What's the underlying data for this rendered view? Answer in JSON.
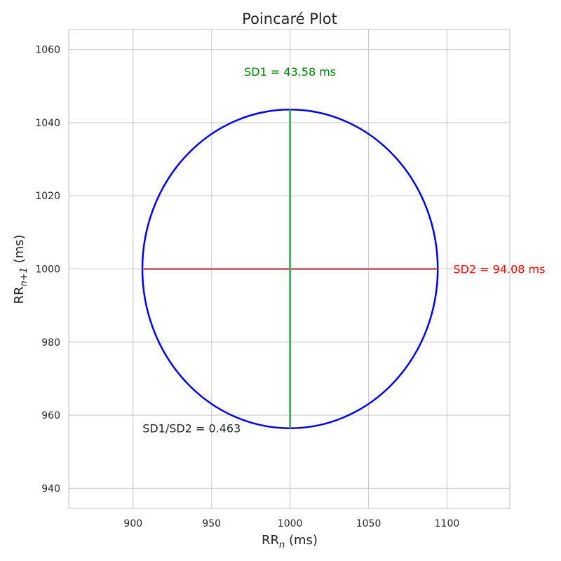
{
  "chart_data": {
    "type": "scatter",
    "title": "Poincaré Plot",
    "xlabel": {
      "base": "RR",
      "sub": "n",
      "suffix": " (ms)"
    },
    "ylabel": {
      "base": "RR",
      "sub": "n+1",
      "suffix": " (ms)"
    },
    "xlim": [
      859,
      1140
    ],
    "ylim": [
      934.5,
      1065.5
    ],
    "xticks": [
      900,
      950,
      1000,
      1050,
      1100
    ],
    "yticks": [
      940,
      960,
      980,
      1000,
      1020,
      1040,
      1060
    ],
    "grid": true,
    "center": {
      "x": 1000,
      "y": 1000
    },
    "ellipse": {
      "x_radius": 94.08,
      "y_radius": 43.58,
      "color": "#0000ee"
    },
    "sd1_line": {
      "x": [
        1000,
        1000
      ],
      "y": [
        956.42,
        1043.58
      ],
      "color": "#55a868"
    },
    "sd2_line": {
      "x": [
        905.92,
        1094.08
      ],
      "y": [
        1000,
        1000
      ],
      "color": "#c44e52"
    },
    "annotations": [
      {
        "key": "sd1",
        "text": "SD1 = 43.58 ms",
        "x": 1000,
        "y": 1054,
        "color": "#008000",
        "anchor": "middle"
      },
      {
        "key": "sd2",
        "text": "SD2 = 94.08 ms",
        "x": 1104,
        "y": 1000,
        "color": "#ff0000",
        "anchor": "start"
      },
      {
        "key": "ratio",
        "text": "SD1/SD2 = 0.463",
        "x": 906,
        "y": 956.5,
        "color": "#262626",
        "anchor": "start"
      }
    ]
  }
}
